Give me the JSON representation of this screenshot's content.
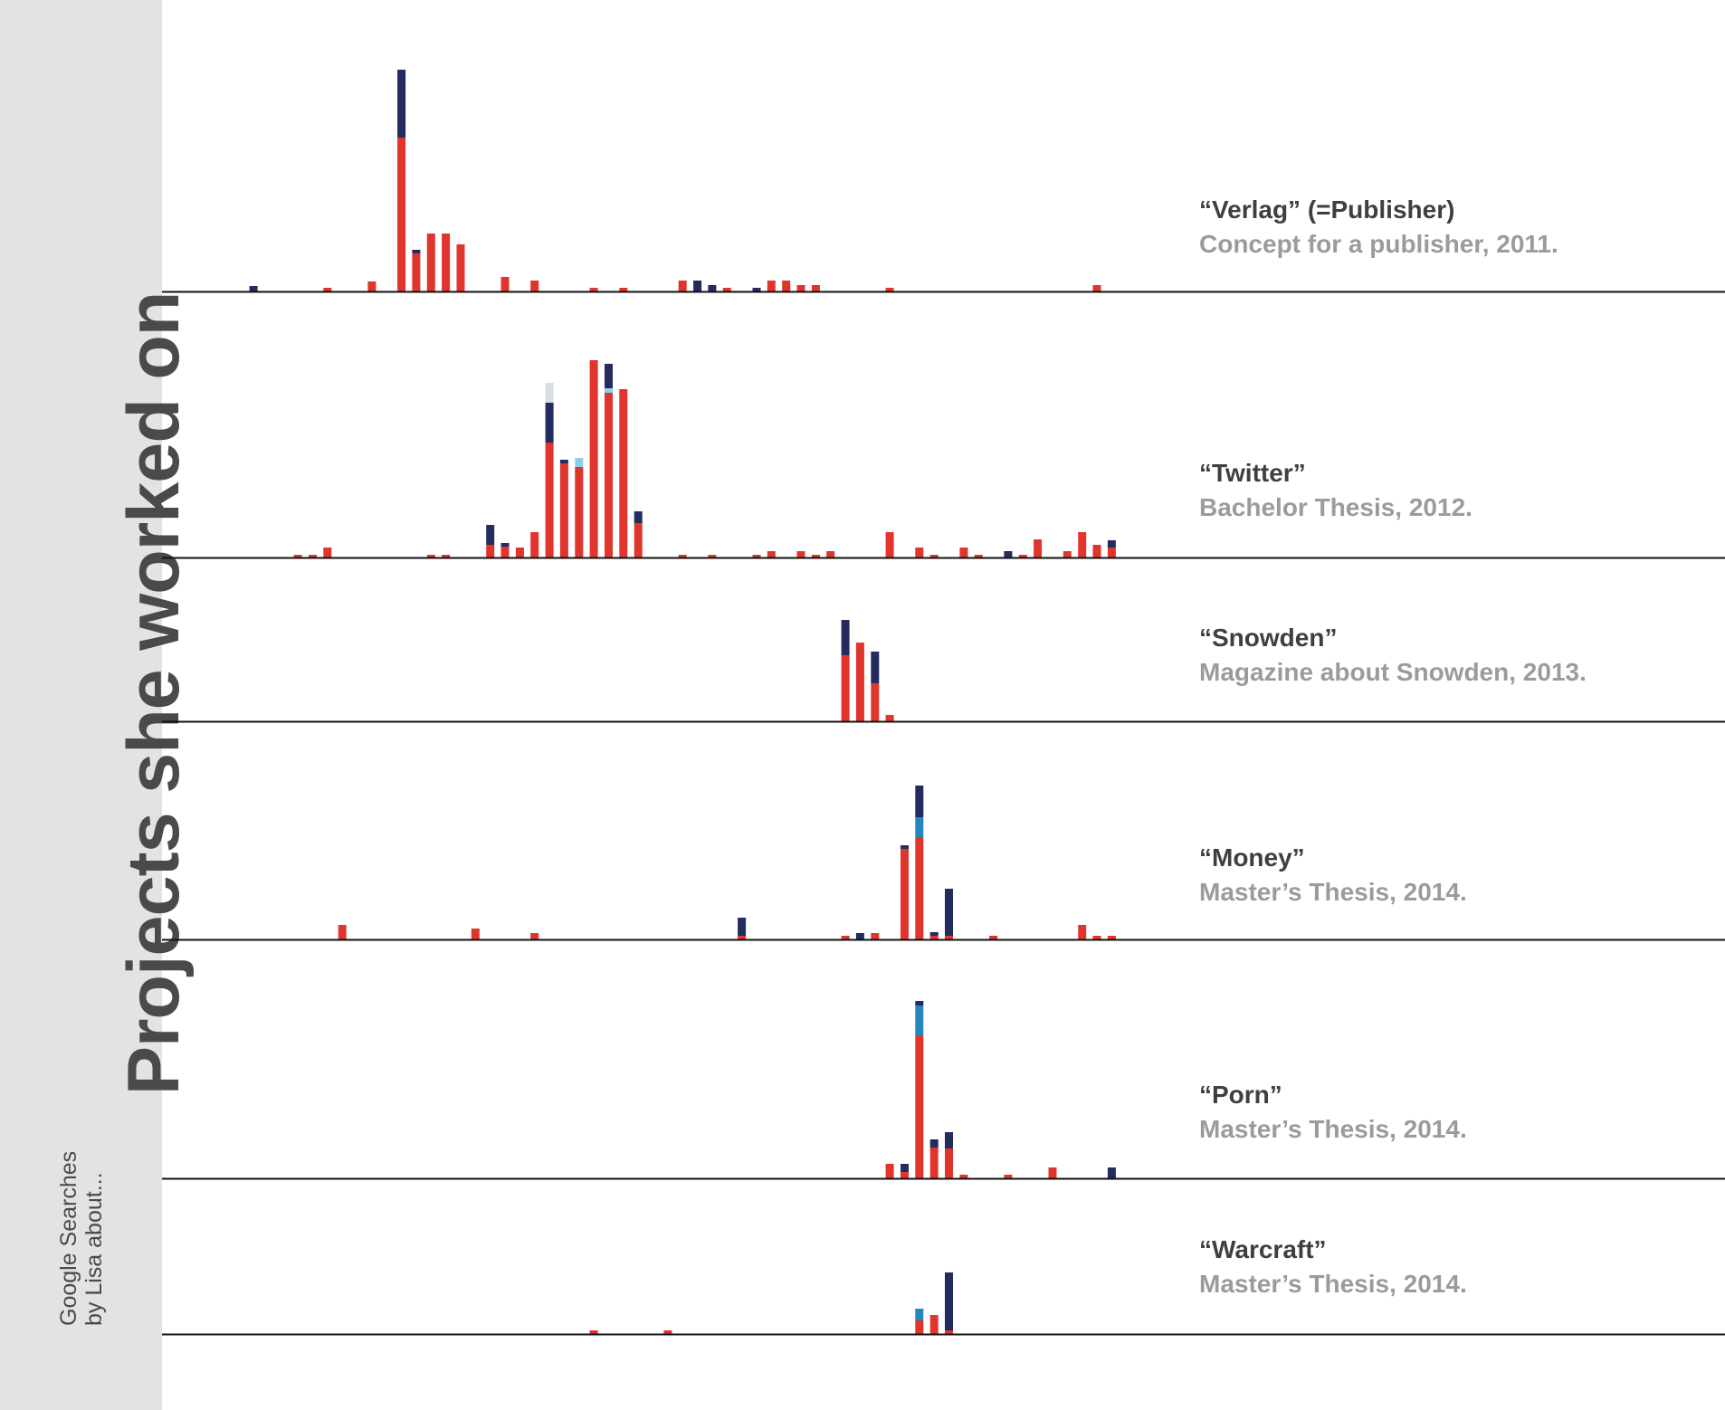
{
  "sidebar": {
    "title": "Projects she worked on",
    "subtitle_line1": "Google Searches",
    "subtitle_line2": "by Lisa about..."
  },
  "colors": {
    "red": "#e0352d",
    "navy": "#232b5f",
    "blue": "#2487bb",
    "lightblue": "#8dcfe8",
    "pale": "#d9dde6",
    "axis": "#111111",
    "sidebar_bg": "#e2e3e5"
  },
  "chart_data": {
    "type": "bar",
    "stacked": true,
    "x_slots": 62,
    "stack_order": [
      "red",
      "blue",
      "lightblue",
      "navy",
      "pale"
    ],
    "panels": [
      {
        "title": "“Verlag” (=Publisher)",
        "subtitle": "Concept for a publisher, 2011.",
        "bars": [
          {
            "x": 4,
            "navy": 6
          },
          {
            "x": 9,
            "red": 4
          },
          {
            "x": 12,
            "red": 11
          },
          {
            "x": 14,
            "red": 170,
            "navy": 75
          },
          {
            "x": 15,
            "red": 42,
            "navy": 4
          },
          {
            "x": 16,
            "red": 64
          },
          {
            "x": 17,
            "red": 64
          },
          {
            "x": 18,
            "red": 52
          },
          {
            "x": 21,
            "red": 16
          },
          {
            "x": 23,
            "red": 12
          },
          {
            "x": 27,
            "red": 4
          },
          {
            "x": 29,
            "red": 4
          },
          {
            "x": 33,
            "red": 12
          },
          {
            "x": 34,
            "navy": 12
          },
          {
            "x": 35,
            "navy": 7
          },
          {
            "x": 36,
            "red": 4
          },
          {
            "x": 38,
            "navy": 4
          },
          {
            "x": 39,
            "red": 12
          },
          {
            "x": 40,
            "red": 12
          },
          {
            "x": 41,
            "red": 7
          },
          {
            "x": 42,
            "red": 7
          },
          {
            "x": 47,
            "red": 4
          },
          {
            "x": 61,
            "red": 7
          }
        ]
      },
      {
        "title": "“Twitter”",
        "subtitle": "Bachelor Thesis, 2012.",
        "bars": [
          {
            "x": 7,
            "red": 3
          },
          {
            "x": 8,
            "red": 3
          },
          {
            "x": 9,
            "red": 11
          },
          {
            "x": 16,
            "red": 3
          },
          {
            "x": 17,
            "red": 3
          },
          {
            "x": 20,
            "red": 14,
            "navy": 22
          },
          {
            "x": 21,
            "red": 12,
            "navy": 4
          },
          {
            "x": 22,
            "red": 11
          },
          {
            "x": 23,
            "red": 28
          },
          {
            "x": 24,
            "red": 127,
            "navy": 44,
            "pale": 22
          },
          {
            "x": 25,
            "red": 104,
            "navy": 4
          },
          {
            "x": 26,
            "red": 100,
            "lightblue": 10
          },
          {
            "x": 27,
            "red": 218
          },
          {
            "x": 28,
            "red": 182,
            "navy": 27,
            "lightblue": 5
          },
          {
            "x": 29,
            "red": 186
          },
          {
            "x": 30,
            "red": 38,
            "navy": 13
          },
          {
            "x": 33,
            "red": 3
          },
          {
            "x": 35,
            "red": 3
          },
          {
            "x": 38,
            "red": 3
          },
          {
            "x": 39,
            "red": 7
          },
          {
            "x": 41,
            "red": 7
          },
          {
            "x": 42,
            "red": 3
          },
          {
            "x": 43,
            "red": 7
          },
          {
            "x": 47,
            "red": 28
          },
          {
            "x": 49,
            "red": 11
          },
          {
            "x": 50,
            "red": 3
          },
          {
            "x": 52,
            "red": 11
          },
          {
            "x": 53,
            "red": 3
          },
          {
            "x": 55,
            "navy": 7
          },
          {
            "x": 56,
            "red": 3
          },
          {
            "x": 57,
            "red": 20
          },
          {
            "x": 59,
            "red": 7
          },
          {
            "x": 60,
            "red": 28
          },
          {
            "x": 61,
            "red": 14
          },
          {
            "x": 62,
            "red": 11,
            "navy": 8
          }
        ]
      },
      {
        "title": "“Snowden”",
        "subtitle": "Magazine about Snowden, 2013.",
        "bars": [
          {
            "x": 44,
            "red": 73,
            "navy": 39
          },
          {
            "x": 45,
            "red": 87
          },
          {
            "x": 46,
            "red": 42,
            "navy": 35
          },
          {
            "x": 47,
            "red": 7
          }
        ]
      },
      {
        "title": "“Money”",
        "subtitle": "Master’s Thesis, 2014.",
        "bars": [
          {
            "x": 10,
            "red": 16
          },
          {
            "x": 19,
            "red": 12
          },
          {
            "x": 23,
            "red": 7
          },
          {
            "x": 37,
            "red": 4,
            "navy": 20
          },
          {
            "x": 44,
            "red": 4
          },
          {
            "x": 45,
            "navy": 7
          },
          {
            "x": 46,
            "red": 7
          },
          {
            "x": 48,
            "red": 100,
            "navy": 4
          },
          {
            "x": 49,
            "red": 112,
            "blue": 23,
            "navy": 35
          },
          {
            "x": 50,
            "red": 4,
            "navy": 4
          },
          {
            "x": 51,
            "red": 4,
            "navy": 52
          },
          {
            "x": 54,
            "red": 4
          },
          {
            "x": 60,
            "red": 16
          },
          {
            "x": 61,
            "red": 4
          },
          {
            "x": 62,
            "red": 4
          }
        ]
      },
      {
        "title": "“Porn”",
        "subtitle": "Master’s Thesis, 2014.",
        "bars": [
          {
            "x": 47,
            "red": 16
          },
          {
            "x": 48,
            "red": 7,
            "navy": 9
          },
          {
            "x": 49,
            "red": 158,
            "blue": 33,
            "navy": 5
          },
          {
            "x": 50,
            "red": 34,
            "navy": 9
          },
          {
            "x": 51,
            "red": 33,
            "navy": 18
          },
          {
            "x": 52,
            "red": 4
          },
          {
            "x": 55,
            "red": 4
          },
          {
            "x": 58,
            "red": 12
          },
          {
            "x": 62,
            "navy": 12
          }
        ]
      },
      {
        "title": "“Warcraft”",
        "subtitle": "Master’s Thesis, 2014.",
        "bars": [
          {
            "x": 27,
            "red": 4
          },
          {
            "x": 32,
            "red": 4
          },
          {
            "x": 49,
            "red": 15,
            "blue": 13
          },
          {
            "x": 50,
            "red": 21
          },
          {
            "x": 51,
            "red": 4,
            "navy": 64
          }
        ]
      }
    ]
  }
}
